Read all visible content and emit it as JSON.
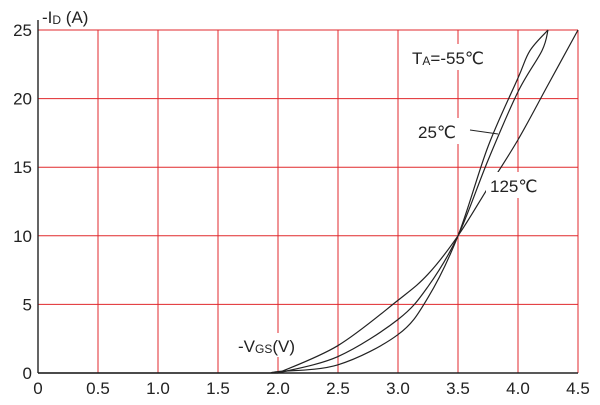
{
  "chart_data": {
    "type": "line",
    "ylabel_main": "-I",
    "ylabel_sub": "D",
    "ylabel_unit": " (A)",
    "xlabel_main": "-V",
    "xlabel_sub": "GS",
    "xlabel_unit": "(V)",
    "xlim": [
      0,
      4.5
    ],
    "ylim": [
      0,
      25
    ],
    "x_ticks": [
      "0",
      "0.5",
      "1.0",
      "1.5",
      "2.0",
      "2.5",
      "3.0",
      "3.5",
      "4.0",
      "4.5"
    ],
    "y_ticks": [
      "0",
      "5",
      "10",
      "15",
      "20",
      "25"
    ],
    "grid": true,
    "grid_color": "#e0282c",
    "line_color": "#222222",
    "series": [
      {
        "name": "TA=-55℃",
        "label_prefix": "T",
        "label_sub": "A",
        "label_rest": "=-55℃",
        "x": [
          1.95,
          2.0,
          2.5,
          3.0,
          3.25,
          3.5,
          3.75,
          4.0,
          4.1,
          4.25
        ],
        "y": [
          0,
          0.1,
          0.6,
          2.8,
          5.5,
          10,
          16.5,
          21.5,
          23.5,
          25
        ]
      },
      {
        "name": "25℃",
        "label_text": "25℃",
        "x": [
          2.0,
          2.5,
          3.0,
          3.25,
          3.5,
          3.75,
          4.0,
          4.2,
          4.25
        ],
        "y": [
          0,
          1.2,
          3.9,
          6.3,
          10,
          15.5,
          20.5,
          23.5,
          25
        ]
      },
      {
        "name": "125℃",
        "label_text": "125℃",
        "x": [
          2.0,
          2.5,
          3.0,
          3.25,
          3.5,
          3.75,
          4.0,
          4.25,
          4.5
        ],
        "y": [
          0,
          2.0,
          5.3,
          7.2,
          10,
          13.5,
          17.0,
          21.0,
          25
        ]
      }
    ]
  }
}
